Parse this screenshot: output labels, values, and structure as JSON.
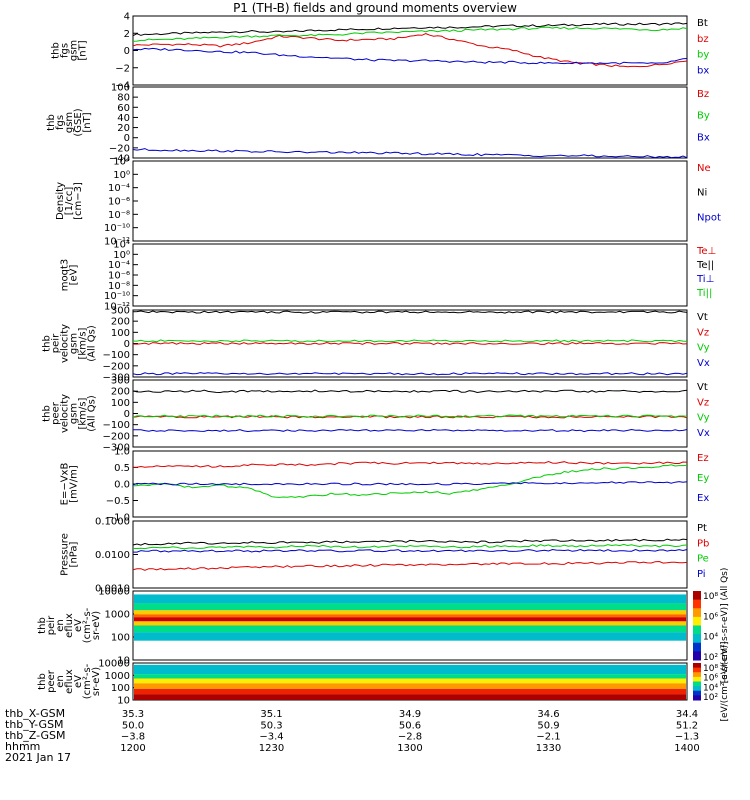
{
  "title": "P1 (TH-B) fields and ground moments overview",
  "colors": {
    "black": "#000000",
    "red": "#dd0000",
    "green": "#00cc00",
    "blue": "#0000cc",
    "axis": "#000000"
  },
  "chart_data": [
    {
      "type": "line",
      "ylabel": [
        "thb",
        "fgs",
        "gsm",
        "[nT]"
      ],
      "yticks": [
        "4",
        "2",
        "0",
        "−2",
        "−4"
      ],
      "ylim": [
        -4,
        4.5
      ],
      "series": [
        {
          "name": "Bt",
          "color": "black",
          "values": [
            2.2,
            2.3,
            2.4,
            2.5,
            2.6,
            2.5,
            2.7,
            2.8,
            2.9,
            3.0,
            3.1,
            3.1,
            3.2,
            3.3,
            3.3,
            3.4,
            3.5,
            3.5,
            3.5,
            3.6
          ]
        },
        {
          "name": "bz",
          "color": "red",
          "values": [
            0.9,
            1.0,
            1.0,
            0.8,
            1.2,
            2.0,
            1.8,
            1.5,
            1.6,
            1.7,
            2.3,
            1.6,
            0.8,
            0.3,
            -0.6,
            -1.2,
            -1.5,
            -1.8,
            -1.5,
            -1.0
          ]
        },
        {
          "name": "by",
          "color": "green",
          "values": [
            1.5,
            1.6,
            1.7,
            1.9,
            2.0,
            2.1,
            2.1,
            2.2,
            2.4,
            2.5,
            2.6,
            2.7,
            2.8,
            2.9,
            3.0,
            3.0,
            3.0,
            2.9,
            2.8,
            3.0
          ]
        },
        {
          "name": "bx",
          "color": "blue",
          "values": [
            0.4,
            0.4,
            0.3,
            0.1,
            0.0,
            -0.3,
            -0.5,
            -0.7,
            -0.9,
            -1.0,
            -1.0,
            -1.1,
            -1.2,
            -1.2,
            -1.3,
            -1.3,
            -1.3,
            -1.3,
            -1.4,
            -0.8
          ]
        }
      ]
    },
    {
      "type": "line",
      "ylabel": [
        "thb",
        "fgs",
        "gsm",
        "(GSE)",
        "[nT]"
      ],
      "yticks": [
        "100",
        "80",
        "60",
        "40",
        "20",
        "0",
        "−20",
        "−40"
      ],
      "ylim": [
        -50,
        100
      ],
      "series": [
        {
          "name": "Bz",
          "color": "red",
          "values": []
        },
        {
          "name": "By",
          "color": "green",
          "values": []
        },
        {
          "name": "Bx",
          "color": "blue",
          "values": [
            -32,
            -33,
            -34,
            -35,
            -36,
            -37,
            -38,
            -38,
            -39,
            -40,
            -41,
            -42,
            -43,
            -44,
            -45,
            -45,
            -46,
            -47,
            -47,
            -48
          ]
        }
      ]
    },
    {
      "type": "line",
      "ylabel": [
        "Density",
        "[1/cc]",
        "[cm−3]"
      ],
      "yticks": [
        "10⁴",
        "10⁰",
        "10⁻⁴",
        "10⁻⁶",
        "10⁻⁸",
        "10⁻¹⁰",
        "10⁻¹²"
      ],
      "ylim": [
        -13,
        5
      ],
      "series": [
        {
          "name": "Ne",
          "color": "red",
          "values": []
        },
        {
          "name": "Ni",
          "color": "black",
          "values": []
        },
        {
          "name": "Npot",
          "color": "blue",
          "values": []
        }
      ]
    },
    {
      "type": "line",
      "ylabel": [
        "moqt3",
        "[eV]"
      ],
      "yticks": [
        "10⁴",
        "10⁰",
        "10⁻⁴",
        "10⁻⁶",
        "10⁻⁸",
        "10⁻¹⁰",
        "10⁻¹²"
      ],
      "ylim": [
        -13,
        5
      ],
      "series": [
        {
          "name": "Te⊥",
          "color": "red",
          "values": []
        },
        {
          "name": "Te||",
          "color": "black",
          "values": []
        },
        {
          "name": "Ti⊥",
          "color": "blue",
          "values": []
        },
        {
          "name": "Ti||",
          "color": "green",
          "values": []
        }
      ]
    },
    {
      "type": "line",
      "ylabel": [
        "thb",
        "peir",
        "velocity",
        "gsm",
        "[km/s]",
        "(All Qs)"
      ],
      "yticks": [
        "300",
        "200",
        "100",
        "0",
        "−100",
        "−200",
        "−300"
      ],
      "ylim": [
        -330,
        320
      ],
      "series": [
        {
          "name": "Vt",
          "color": "black",
          "values": [
            300,
            301,
            299,
            300,
            302,
            300,
            299,
            301,
            300,
            300,
            301,
            300,
            299,
            300,
            302,
            300,
            301,
            300,
            300,
            301
          ]
        },
        {
          "name": "Vz",
          "color": "red",
          "values": [
            -5,
            -5,
            -4,
            -5,
            -6,
            -5,
            -5,
            -4,
            -5,
            -5,
            -6,
            -5,
            -5,
            -4,
            -5,
            -5,
            -5,
            -6,
            -5,
            -5
          ]
        },
        {
          "name": "Vy",
          "color": "green",
          "values": [
            18,
            20,
            19,
            20,
            21,
            20,
            19,
            20,
            20,
            21,
            20,
            19,
            20,
            20,
            21,
            20,
            19,
            20,
            20,
            20
          ]
        },
        {
          "name": "Vx",
          "color": "blue",
          "values": [
            -298,
            -299,
            -297,
            -298,
            -300,
            -298,
            -297,
            -299,
            -298,
            -298,
            -299,
            -298,
            -297,
            -298,
            -300,
            -298,
            -299,
            -298,
            -298,
            -299
          ]
        }
      ]
    },
    {
      "type": "line",
      "ylabel": [
        "thb",
        "peer",
        "velocity",
        "gsm",
        "[km/s]",
        "(All Qs)"
      ],
      "yticks": [
        "300",
        "200",
        "100",
        "0",
        "−100",
        "−200",
        "−300"
      ],
      "ylim": [
        -330,
        320
      ],
      "series": [
        {
          "name": "Vt",
          "color": "black",
          "values": [
            210,
            205,
            215,
            208,
            212,
            206,
            214,
            209,
            211,
            207,
            213,
            210,
            205,
            212,
            208,
            211,
            209,
            210,
            206,
            212
          ]
        },
        {
          "name": "Vz",
          "color": "red",
          "values": [
            -38,
            -35,
            -40,
            -36,
            -39,
            -37,
            -41,
            -38,
            -36,
            -40,
            -37,
            -39,
            -38,
            -36,
            -40,
            -37,
            -39,
            -38,
            -36,
            -40
          ]
        },
        {
          "name": "Vy",
          "color": "green",
          "values": [
            -30,
            -28,
            -33,
            -29,
            -31,
            -30,
            -32,
            -29,
            -30,
            -31,
            -28,
            -32,
            -30,
            -29,
            -31,
            -30,
            -32,
            -29,
            -31,
            -30
          ]
        },
        {
          "name": "Vx",
          "color": "blue",
          "values": [
            -170,
            -168,
            -172,
            -169,
            -171,
            -170,
            -173,
            -168,
            -171,
            -170,
            -169,
            -172,
            -170,
            -168,
            -171,
            -170,
            -172,
            -169,
            -171,
            -170
          ]
        }
      ]
    },
    {
      "type": "line",
      "ylabel": [
        "E=−VxB",
        "[mV/m]"
      ],
      "yticks": [
        "1.0",
        "0.5",
        "0.0",
        "−0.5",
        "−1.0"
      ],
      "ylim": [
        -1.05,
        1.05
      ],
      "series": [
        {
          "name": "Ez",
          "color": "red",
          "values": [
            0.55,
            0.58,
            0.57,
            0.56,
            0.6,
            0.62,
            0.61,
            0.65,
            0.67,
            0.66,
            0.68,
            0.66,
            0.65,
            0.67,
            0.69,
            0.68,
            0.66,
            0.65,
            0.67,
            0.68
          ]
        },
        {
          "name": "Ey",
          "color": "green",
          "values": [
            -0.05,
            0.0,
            -0.1,
            -0.05,
            -0.15,
            -0.45,
            -0.4,
            -0.3,
            -0.35,
            -0.3,
            -0.25,
            -0.3,
            -0.15,
            0.0,
            0.25,
            0.4,
            0.48,
            0.52,
            0.55,
            0.62
          ]
        },
        {
          "name": "Ex",
          "color": "blue",
          "values": [
            0.0,
            0.0,
            0.0,
            0.0,
            0.0,
            0.0,
            0.0,
            0.0,
            0.0,
            0.0,
            0.0,
            0.0,
            0.0,
            0.02,
            0.03,
            0.03,
            0.04,
            0.04,
            0.05,
            0.05
          ]
        }
      ]
    },
    {
      "type": "line",
      "ylabel": [
        "Pressure",
        "[nPa]"
      ],
      "yticks": [
        "0.1000",
        "0.0100",
        "0.0010"
      ],
      "ylim": [
        -3.35,
        -0.95
      ],
      "log": true,
      "series": [
        {
          "name": "Pt",
          "color": "black",
          "values": [
            0.016,
            0.017,
            0.018,
            0.018,
            0.019,
            0.019,
            0.019,
            0.02,
            0.02,
            0.021,
            0.021,
            0.02,
            0.02,
            0.021,
            0.022,
            0.022,
            0.022,
            0.023,
            0.023,
            0.024
          ]
        },
        {
          "name": "Pb",
          "color": "red",
          "values": [
            0.002,
            0.0021,
            0.0022,
            0.0023,
            0.0025,
            0.0026,
            0.0027,
            0.0028,
            0.0029,
            0.003,
            0.0031,
            0.0031,
            0.0032,
            0.0033,
            0.0034,
            0.0034,
            0.0035,
            0.0036,
            0.0037,
            0.0038
          ]
        },
        {
          "name": "Pe",
          "color": "green",
          "values": [
            0.012,
            0.013,
            0.012,
            0.013,
            0.014,
            0.013,
            0.014,
            0.014,
            0.013,
            0.014,
            0.014,
            0.013,
            0.014,
            0.014,
            0.015,
            0.014,
            0.015,
            0.015,
            0.014,
            0.015
          ]
        },
        {
          "name": "Pi",
          "color": "blue",
          "values": [
            0.009,
            0.0095,
            0.0092,
            0.0096,
            0.0094,
            0.0097,
            0.0096,
            0.0095,
            0.0097,
            0.0098,
            0.0096,
            0.0097,
            0.0098,
            0.0099,
            0.0098,
            0.01,
            0.0099,
            0.01,
            0.0101,
            0.01
          ]
        }
      ]
    },
    {
      "type": "heatmap",
      "ylabel": [
        "thb",
        "peir",
        "en",
        "eflux",
        "eV",
        "(cm²-s-",
        "sr-eV)"
      ],
      "yticks": [
        "10000",
        "1000",
        "100",
        "10"
      ],
      "ylim": [
        0.7,
        4.6
      ],
      "colorbar": "[eV/(cm²-s-sr-eV)] (All Qs)",
      "colorbar_ticks": [
        "10⁸",
        "10⁶",
        "10⁴",
        "10²"
      ],
      "series": []
    },
    {
      "type": "heatmap",
      "ylabel": [
        "thb",
        "peer",
        "en",
        "eflux",
        "eV",
        "(cm²-s-",
        "sr-eV)"
      ],
      "yticks": [
        "10000",
        "1000",
        "100",
        "10"
      ],
      "ylim": [
        0.7,
        4.6
      ],
      "colorbar": "[eV/(cm²-s-sr-eV)]",
      "colorbar_ticks": [
        "10⁸",
        "10⁶",
        "10⁴",
        "10²"
      ],
      "series": []
    }
  ],
  "xticks": {
    "thb_X-GSM": [
      "35.3",
      "35.1",
      "34.9",
      "34.6",
      "34.4"
    ],
    "thb_Y-GSM": [
      "50.0",
      "50.3",
      "50.6",
      "50.9",
      "51.2"
    ],
    "thb_Z-GSM": [
      "−3.8",
      "−3.4",
      "−2.8",
      "−2.1",
      "−1.3"
    ],
    "hhmm": [
      "1200",
      "1230",
      "1300",
      "1330",
      "1400"
    ]
  },
  "footer_labels": [
    "thb_X-GSM",
    "thb_Y-GSM",
    "thb_Z-GSM",
    "hhmm"
  ],
  "date": "2021 Jan 17"
}
